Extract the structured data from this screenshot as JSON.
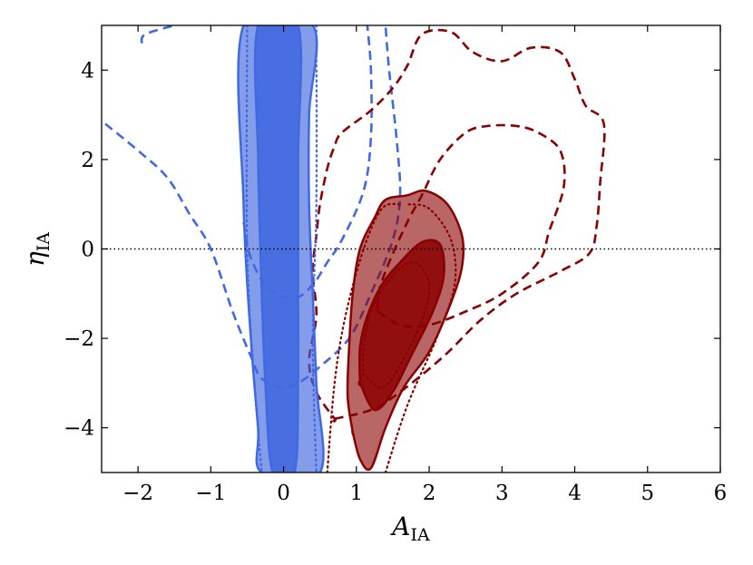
{
  "chart_data": {
    "type": "contour",
    "xlabel": "A",
    "xlabel_sub": "IA",
    "ylabel": "η",
    "ylabel_sub": "IA",
    "xlim": [
      -2.5,
      6
    ],
    "ylim": [
      -5,
      5
    ],
    "xticks": [
      -2,
      -1,
      0,
      1,
      2,
      3,
      4,
      5,
      6
    ],
    "yticks": [
      -4,
      -2,
      0,
      2,
      4
    ],
    "xtick_labels": [
      "−2",
      "−1",
      "0",
      "1",
      "2",
      "3",
      "4",
      "5",
      "6"
    ],
    "ytick_labels": [
      "−4",
      "−2",
      "0",
      "2",
      "4"
    ],
    "reference_line": {
      "y": 0,
      "style": "dotted",
      "color": "#000000"
    },
    "colors": {
      "blue": "#4169e1",
      "red": "#8b0000"
    },
    "series": [
      {
        "color": "#4169e1",
        "style": "filled",
        "contours": [
          {
            "level": "outer",
            "fill_opacity": 0.65,
            "points": [
              [
                -0.55,
                5
              ],
              [
                -0.55,
                1
              ],
              [
                -0.45,
                -2
              ],
              [
                -0.35,
                -4
              ],
              [
                -0.3,
                -5
              ],
              [
                0.5,
                -5
              ],
              [
                0.45,
                -3
              ],
              [
                0.4,
                -1
              ],
              [
                0.35,
                1
              ],
              [
                0.35,
                3
              ],
              [
                0.4,
                5
              ]
            ]
          },
          {
            "level": "inner",
            "fill_opacity": 0.9,
            "points": [
              [
                -0.35,
                5
              ],
              [
                -0.35,
                2
              ],
              [
                -0.3,
                -1
              ],
              [
                -0.25,
                -3
              ],
              [
                -0.15,
                -5
              ],
              [
                0.15,
                -5
              ],
              [
                0.2,
                -3
              ],
              [
                0.2,
                -1
              ],
              [
                0.2,
                2
              ],
              [
                0.2,
                5
              ]
            ]
          }
        ]
      },
      {
        "color": "#4169e1",
        "style": "dotted",
        "contours": [
          {
            "points": [
              [
                -0.5,
                5
              ],
              [
                -0.5,
                0
              ],
              [
                -0.4,
                -3
              ],
              [
                -0.3,
                -5
              ]
            ]
          },
          {
            "points": [
              [
                0.45,
                5
              ],
              [
                0.45,
                1
              ],
              [
                0.4,
                -2
              ],
              [
                0.45,
                -5
              ]
            ]
          }
        ]
      },
      {
        "color": "#4169e1",
        "style": "dashed",
        "contours": [
          {
            "points": [
              [
                -2.45,
                2.8
              ],
              [
                -2.0,
                2.2
              ],
              [
                -1.6,
                1.6
              ],
              [
                -1.3,
                0.8
              ],
              [
                -1.0,
                0
              ],
              [
                -0.7,
                -1.4
              ],
              [
                -0.45,
                -2.4
              ],
              [
                -0.3,
                -2.9
              ],
              [
                0.0,
                -3.1
              ],
              [
                0.2,
                -3.0
              ],
              [
                0.45,
                -2.7
              ],
              [
                0.9,
                -2.0
              ],
              [
                1.2,
                -1.0
              ],
              [
                1.5,
                0.2
              ],
              [
                1.6,
                1.2
              ],
              [
                1.55,
                2.5
              ],
              [
                1.45,
                4
              ],
              [
                1.4,
                5
              ]
            ]
          },
          {
            "points": [
              [
                -1.95,
                4.6
              ],
              [
                -1.9,
                4.8
              ],
              [
                -1.5,
                5
              ]
            ]
          },
          {
            "points": [
              [
                -0.55,
                0.6
              ],
              [
                -0.45,
                -0.2
              ],
              [
                -0.2,
                -0.9
              ],
              [
                0.15,
                -1.1
              ],
              [
                0.4,
                -0.8
              ],
              [
                0.6,
                -0.3
              ],
              [
                0.8,
                0.2
              ],
              [
                1.1,
                1.3
              ],
              [
                1.2,
                2.5
              ],
              [
                1.2,
                4
              ],
              [
                1.15,
                5
              ]
            ]
          }
        ]
      },
      {
        "color": "#8b0000",
        "style": "filled",
        "contours": [
          {
            "level": "outer",
            "fill_opacity": 0.6,
            "points": [
              [
                0.95,
                -4.1
              ],
              [
                1.05,
                -4.7
              ],
              [
                1.2,
                -4.9
              ],
              [
                1.4,
                -4.0
              ],
              [
                1.65,
                -3.1
              ],
              [
                2.0,
                -2.3
              ],
              [
                2.3,
                -1.2
              ],
              [
                2.45,
                -0.4
              ],
              [
                2.45,
                0.3
              ],
              [
                2.25,
                1.0
              ],
              [
                1.95,
                1.3
              ],
              [
                1.7,
                1.2
              ],
              [
                1.4,
                1.1
              ],
              [
                1.25,
                0.7
              ],
              [
                1.05,
                0
              ],
              [
                0.95,
                -1.0
              ],
              [
                0.9,
                -2.2
              ],
              [
                0.88,
                -3.3
              ],
              [
                0.95,
                -4.1
              ]
            ]
          },
          {
            "level": "inner",
            "fill_opacity": 0.85,
            "points": [
              [
                1.05,
                -3.0
              ],
              [
                1.25,
                -3.6
              ],
              [
                1.5,
                -3.2
              ],
              [
                1.75,
                -2.4
              ],
              [
                2.05,
                -1.4
              ],
              [
                2.2,
                -0.6
              ],
              [
                2.15,
                0.1
              ],
              [
                1.9,
                0.15
              ],
              [
                1.6,
                -0.3
              ],
              [
                1.35,
                -0.8
              ],
              [
                1.15,
                -1.5
              ],
              [
                1.05,
                -2.2
              ],
              [
                1.05,
                -3.0
              ]
            ]
          }
        ]
      },
      {
        "color": "#8b0000",
        "style": "dotted",
        "contours": [
          {
            "points": [
              [
                0.6,
                -5
              ],
              [
                0.7,
                -3
              ],
              [
                0.85,
                -1.5
              ],
              [
                1.1,
                0
              ],
              [
                1.35,
                0.9
              ],
              [
                1.6,
                1.0
              ]
            ]
          },
          {
            "points": [
              [
                1.4,
                -5
              ],
              [
                1.7,
                -3.5
              ],
              [
                2.1,
                -2.0
              ],
              [
                2.35,
                -0.8
              ],
              [
                2.3,
                0.2
              ],
              [
                2.0,
                0.9
              ],
              [
                1.7,
                1.0
              ]
            ]
          },
          {
            "points": [
              [
                1.1,
                -2.8
              ],
              [
                1.35,
                -3.1
              ],
              [
                1.6,
                -2.6
              ],
              [
                1.9,
                -1.6
              ],
              [
                2.0,
                -0.8
              ],
              [
                1.8,
                -0.3
              ],
              [
                1.5,
                -0.6
              ],
              [
                1.2,
                -1.4
              ],
              [
                1.1,
                -2.2
              ],
              [
                1.1,
                -2.8
              ]
            ]
          }
        ]
      },
      {
        "color": "#8b0000",
        "style": "dashed",
        "contours": [
          {
            "points": [
              [
                0.7,
                -3.8
              ],
              [
                1.2,
                -3.6
              ],
              [
                1.6,
                -3.2
              ],
              [
                2.2,
                -2.4
              ],
              [
                2.7,
                -1.6
              ],
              [
                3.2,
                -1.0
              ],
              [
                3.8,
                -0.5
              ],
              [
                4.2,
                -0.1
              ],
              [
                4.3,
                0.5
              ],
              [
                4.35,
                1.5
              ],
              [
                4.4,
                2.8
              ],
              [
                4.15,
                3.2
              ],
              [
                4.0,
                3.8
              ],
              [
                3.8,
                4.4
              ],
              [
                3.4,
                4.5
              ],
              [
                3.0,
                4.2
              ],
              [
                2.6,
                4.4
              ],
              [
                2.3,
                4.85
              ],
              [
                1.9,
                4.8
              ],
              [
                1.7,
                4.1
              ],
              [
                1.5,
                3.6
              ],
              [
                1.2,
                3.1
              ],
              [
                0.8,
                2.6
              ],
              [
                0.7,
                2.3
              ],
              [
                0.6,
                1.8
              ],
              [
                0.5,
                1.0
              ],
              [
                0.45,
                0.3
              ],
              [
                0.4,
                -0.5
              ],
              [
                0.45,
                -1.5
              ],
              [
                0.35,
                -2.5
              ],
              [
                0.45,
                -3.2
              ],
              [
                0.7,
                -3.8
              ]
            ]
          },
          {
            "points": [
              [
                1.3,
                -1.4
              ],
              [
                1.6,
                -1.7
              ],
              [
                2.0,
                -1.7
              ],
              [
                2.5,
                -1.4
              ],
              [
                3.0,
                -1.0
              ],
              [
                3.5,
                -0.3
              ],
              [
                3.65,
                0.4
              ],
              [
                3.85,
                1.4
              ],
              [
                3.8,
                2.2
              ],
              [
                3.5,
                2.6
              ],
              [
                3.2,
                2.75
              ],
              [
                2.8,
                2.75
              ],
              [
                2.5,
                2.6
              ],
              [
                2.15,
                2.0
              ],
              [
                1.9,
                1.2
              ],
              [
                1.7,
                0.6
              ],
              [
                1.45,
                -0.3
              ],
              [
                1.3,
                -1.0
              ],
              [
                1.3,
                -1.4
              ]
            ]
          }
        ]
      }
    ]
  }
}
